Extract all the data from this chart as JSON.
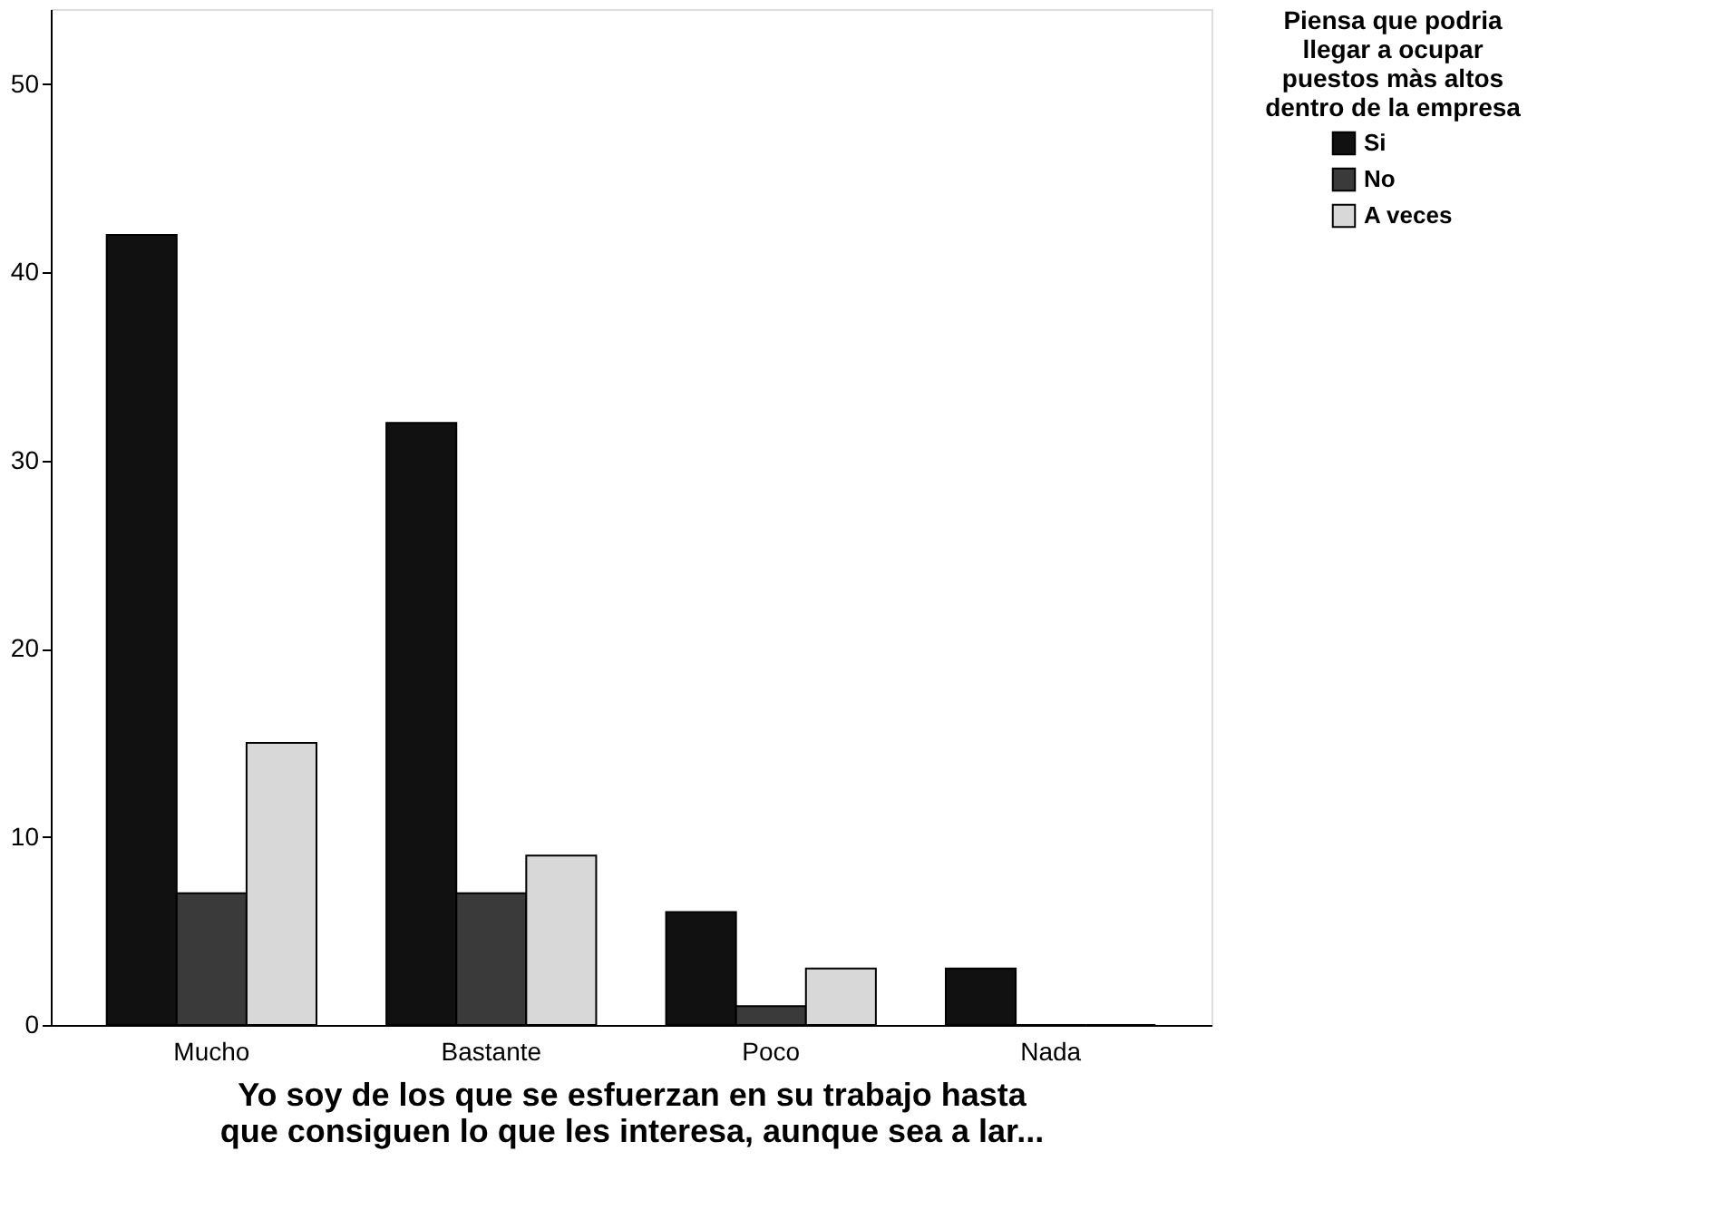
{
  "chart_data": {
    "type": "bar",
    "xlabel": "Yo soy de los que se esfuerzan en su trabajo hasta\nque consiguen lo que les interesa, aunque sea a lar...",
    "legend_title": "Piensa que podria\nllegar a ocupar\npuestos màs altos\ndentro de la empresa",
    "categories": [
      "Mucho",
      "Bastante",
      "Poco",
      "Nada"
    ],
    "series": [
      {
        "name": "Si",
        "color": "#111111",
        "values": [
          42,
          32,
          6,
          3
        ]
      },
      {
        "name": "No",
        "color": "#3a3a3a",
        "values": [
          7,
          7,
          1,
          0
        ]
      },
      {
        "name": "A veces",
        "color": "#d8d8d8",
        "values": [
          15,
          9,
          3,
          0
        ]
      }
    ],
    "ylim": [
      0,
      54
    ],
    "yticks": [
      0,
      10,
      20,
      30,
      40,
      50
    ],
    "grid": false,
    "legend": "top right"
  }
}
